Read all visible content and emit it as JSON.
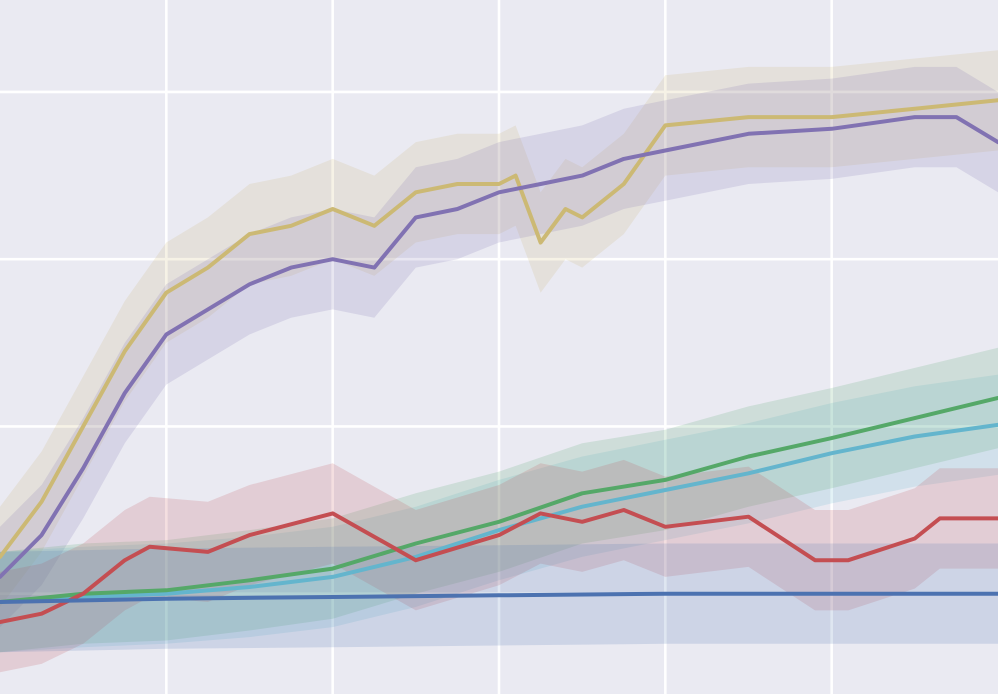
{
  "chart_data": {
    "type": "line",
    "title": "",
    "xlabel": "",
    "ylabel": "",
    "xlim": [
      0,
      6
    ],
    "ylim": [
      -0.6,
      3.55
    ],
    "grid": true,
    "x_grid": [
      1,
      2,
      3,
      4,
      5
    ],
    "y_grid": [
      0,
      1,
      2,
      3
    ],
    "background": "#eaeaf2",
    "legend": "none",
    "series": [
      {
        "color": "#ccb974",
        "x": [
          0,
          0.25,
          0.5,
          0.75,
          1.0,
          1.25,
          1.5,
          1.75,
          2.0,
          2.25,
          2.5,
          2.75,
          3.0,
          3.1,
          3.25,
          3.4,
          3.5,
          3.75,
          4.0,
          4.5,
          5.0,
          5.5,
          6.0
        ],
        "y": [
          0.22,
          0.55,
          1.0,
          1.45,
          1.8,
          1.95,
          2.15,
          2.2,
          2.3,
          2.2,
          2.4,
          2.45,
          2.45,
          2.5,
          2.1,
          2.3,
          2.25,
          2.45,
          2.8,
          2.85,
          2.85,
          2.9,
          2.95
        ]
      },
      {
        "color": "#8172b2",
        "x": [
          0,
          0.25,
          0.5,
          0.75,
          1.0,
          1.25,
          1.5,
          1.75,
          2.0,
          2.25,
          2.5,
          2.75,
          3.0,
          3.25,
          3.5,
          3.75,
          4.0,
          4.5,
          5.0,
          5.5,
          5.75,
          6.0
        ],
        "y": [
          0.1,
          0.35,
          0.75,
          1.2,
          1.55,
          1.7,
          1.85,
          1.95,
          2.0,
          1.95,
          2.25,
          2.3,
          2.4,
          2.45,
          2.5,
          2.6,
          2.65,
          2.75,
          2.78,
          2.85,
          2.85,
          2.7
        ]
      },
      {
        "color": "#64b5cd",
        "x": [
          0,
          0.5,
          1.0,
          1.5,
          2.0,
          2.5,
          3.0,
          3.5,
          4.0,
          4.5,
          5.0,
          5.5,
          6.0
        ],
        "y": [
          -0.05,
          -0.02,
          0.0,
          0.04,
          0.1,
          0.22,
          0.38,
          0.52,
          0.62,
          0.72,
          0.84,
          0.94,
          1.01
        ]
      },
      {
        "color": "#55a868",
        "x": [
          0,
          0.5,
          1.0,
          1.5,
          2.0,
          2.5,
          3.0,
          3.5,
          4.0,
          4.5,
          5.0,
          5.5,
          6.0
        ],
        "y": [
          -0.05,
          0.0,
          0.02,
          0.08,
          0.15,
          0.3,
          0.43,
          0.6,
          0.68,
          0.82,
          0.93,
          1.05,
          1.17
        ]
      },
      {
        "color": "#c44e52",
        "x": [
          0,
          0.25,
          0.5,
          0.75,
          0.9,
          1.25,
          1.5,
          2.0,
          2.5,
          3.0,
          3.25,
          3.5,
          3.75,
          4.0,
          4.5,
          4.9,
          5.1,
          5.5,
          5.65,
          6.0
        ],
        "y": [
          -0.17,
          -0.12,
          0.0,
          0.2,
          0.28,
          0.25,
          0.35,
          0.48,
          0.2,
          0.35,
          0.48,
          0.43,
          0.5,
          0.4,
          0.46,
          0.2,
          0.2,
          0.33,
          0.45,
          0.45
        ]
      },
      {
        "color": "#4c72b0",
        "x": [
          0,
          1.0,
          2.0,
          3.0,
          4.0,
          5.0,
          6.0
        ],
        "y": [
          -0.05,
          -0.03,
          -0.02,
          -0.01,
          0.0,
          0.0,
          0.0
        ]
      }
    ]
  }
}
